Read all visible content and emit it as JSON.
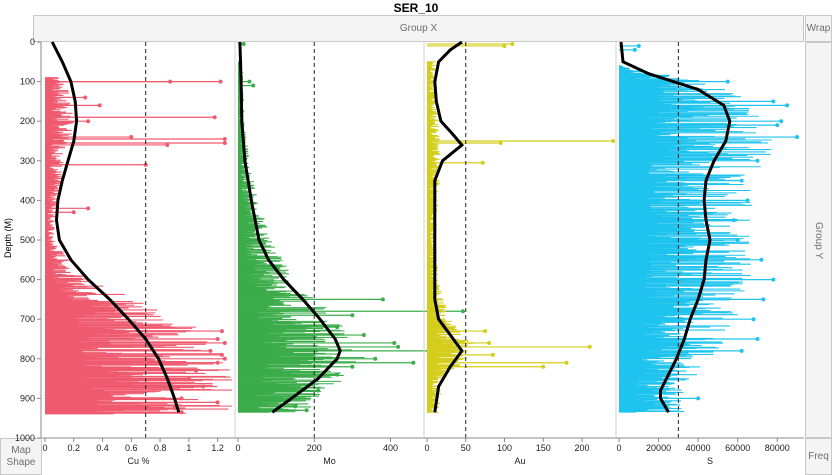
{
  "title": "SER_10",
  "zones": {
    "group_x": "Group X",
    "wrap": "Wrap",
    "group_y": "Group Y",
    "map_shape_line1": "Map",
    "map_shape_line2": "Shape",
    "freq": "Freq"
  },
  "chart_data": {
    "type": "line",
    "ylabel": "Depth (M)",
    "ylim": [
      1000,
      0
    ],
    "yticks": [
      0,
      100,
      200,
      300,
      400,
      500,
      600,
      700,
      800,
      900,
      1000
    ],
    "panels": [
      {
        "name": "Cu %",
        "color": "#ef5a6f",
        "xlim": [
          0,
          1.3
        ],
        "xticks": [
          0,
          0.2,
          0.4,
          0.6,
          0.8,
          1,
          1.2
        ],
        "xticklabels": [
          "0",
          "0.2",
          "0.4",
          "0.6",
          "0.8",
          "1",
          "1.2"
        ],
        "reference_line": 0.7,
        "spikes": [
          [
            100,
            0.87
          ],
          [
            100,
            1.22
          ],
          [
            140,
            0.28
          ],
          [
            160,
            0.38
          ],
          [
            190,
            1.18
          ],
          [
            200,
            0.3
          ],
          [
            240,
            0.6
          ],
          [
            245,
            1.25
          ],
          [
            255,
            1.25
          ],
          [
            260,
            0.85
          ],
          [
            310,
            0.7
          ],
          [
            420,
            0.3
          ],
          [
            430,
            0.2
          ],
          [
            730,
            1.23
          ],
          [
            750,
            1.2
          ],
          [
            760,
            1.25
          ],
          [
            780,
            1.15
          ],
          [
            790,
            1.23
          ],
          [
            800,
            1.25
          ],
          [
            810,
            1.2
          ],
          [
            830,
            1.05
          ],
          [
            850,
            1.0
          ],
          [
            870,
            1.1
          ],
          [
            900,
            0.95
          ],
          [
            910,
            1.2
          ],
          [
            925,
            0.9
          ],
          [
            935,
            0.95
          ]
        ],
        "baseline": [
          [
            90,
            0.1
          ],
          [
            200,
            0.14
          ],
          [
            300,
            0.09
          ],
          [
            400,
            0.07
          ],
          [
            450,
            0.05
          ],
          [
            500,
            0.04
          ],
          [
            600,
            0.2
          ],
          [
            650,
            0.45
          ],
          [
            700,
            0.7
          ],
          [
            750,
            0.75
          ],
          [
            800,
            0.85
          ],
          [
            850,
            0.9
          ],
          [
            900,
            0.95
          ],
          [
            940,
            0.9
          ]
        ],
        "trend": [
          [
            0,
            0.05
          ],
          [
            50,
            0.12
          ],
          [
            100,
            0.18
          ],
          [
            150,
            0.21
          ],
          [
            200,
            0.22
          ],
          [
            250,
            0.2
          ],
          [
            300,
            0.16
          ],
          [
            350,
            0.12
          ],
          [
            400,
            0.09
          ],
          [
            450,
            0.08
          ],
          [
            500,
            0.1
          ],
          [
            550,
            0.18
          ],
          [
            600,
            0.3
          ],
          [
            650,
            0.45
          ],
          [
            700,
            0.58
          ],
          [
            750,
            0.7
          ],
          [
            800,
            0.79
          ],
          [
            850,
            0.85
          ],
          [
            900,
            0.9
          ],
          [
            935,
            0.93
          ]
        ]
      },
      {
        "name": "Mo",
        "color": "#3cad4b",
        "xlim": [
          0,
          480
        ],
        "xticks": [
          0,
          200,
          400
        ],
        "xticklabels": [
          "0",
          "200",
          "400"
        ],
        "reference_line": 200,
        "spikes": [
          [
            5,
            15
          ],
          [
            100,
            30
          ],
          [
            110,
            40
          ],
          [
            450,
            35
          ],
          [
            475,
            40
          ],
          [
            600,
            50
          ],
          [
            650,
            380
          ],
          [
            680,
            590
          ],
          [
            690,
            300
          ],
          [
            720,
            260
          ],
          [
            740,
            330
          ],
          [
            760,
            410
          ],
          [
            770,
            420
          ],
          [
            780,
            500
          ],
          [
            800,
            360
          ],
          [
            810,
            460
          ],
          [
            820,
            300
          ],
          [
            840,
            260
          ],
          [
            880,
            210
          ],
          [
            920,
            150
          ],
          [
            930,
            180
          ]
        ],
        "baseline": [
          [
            50,
            8
          ],
          [
            200,
            12
          ],
          [
            300,
            20
          ],
          [
            400,
            35
          ],
          [
            500,
            60
          ],
          [
            600,
            100
          ],
          [
            700,
            180
          ],
          [
            800,
            230
          ],
          [
            900,
            160
          ],
          [
            935,
            120
          ]
        ],
        "trend": [
          [
            0,
            5
          ],
          [
            100,
            8
          ],
          [
            200,
            10
          ],
          [
            300,
            18
          ],
          [
            400,
            35
          ],
          [
            500,
            55
          ],
          [
            550,
            80
          ],
          [
            600,
            120
          ],
          [
            650,
            170
          ],
          [
            700,
            215
          ],
          [
            750,
            255
          ],
          [
            780,
            268
          ],
          [
            800,
            260
          ],
          [
            850,
            210
          ],
          [
            900,
            140
          ],
          [
            935,
            90
          ]
        ]
      },
      {
        "name": "Au",
        "color": "#d4cd1c",
        "xlim": [
          0,
          240
        ],
        "xticks": [
          0,
          50,
          100,
          150,
          200
        ],
        "xticklabels": [
          "0",
          "50",
          "100",
          "150",
          "200"
        ],
        "reference_line": 50,
        "spikes": [
          [
            5,
            110
          ],
          [
            10,
            100
          ],
          [
            250,
            240
          ],
          [
            255,
            95
          ],
          [
            305,
            72
          ],
          [
            730,
            75
          ],
          [
            760,
            80
          ],
          [
            770,
            210
          ],
          [
            790,
            85
          ],
          [
            810,
            180
          ],
          [
            820,
            150
          ]
        ],
        "baseline": [
          [
            50,
            8
          ],
          [
            200,
            10
          ],
          [
            300,
            12
          ],
          [
            400,
            10
          ],
          [
            500,
            8
          ],
          [
            600,
            10
          ],
          [
            700,
            20
          ],
          [
            760,
            40
          ],
          [
            800,
            35
          ],
          [
            850,
            15
          ],
          [
            935,
            10
          ]
        ],
        "trend": [
          [
            0,
            45
          ],
          [
            20,
            30
          ],
          [
            50,
            15
          ],
          [
            100,
            10
          ],
          [
            150,
            12
          ],
          [
            200,
            18
          ],
          [
            230,
            32
          ],
          [
            260,
            45
          ],
          [
            300,
            20
          ],
          [
            350,
            10
          ],
          [
            400,
            10
          ],
          [
            500,
            10
          ],
          [
            600,
            10
          ],
          [
            650,
            10
          ],
          [
            700,
            15
          ],
          [
            740,
            30
          ],
          [
            780,
            45
          ],
          [
            820,
            30
          ],
          [
            870,
            15
          ],
          [
            935,
            10
          ]
        ]
      },
      {
        "name": "S",
        "color": "#1ec3ee",
        "xlim": [
          0,
          92000
        ],
        "xticks": [
          0,
          20000,
          40000,
          60000,
          80000
        ],
        "xticklabels": [
          "0",
          "20000",
          "40000",
          "60000",
          "80000"
        ],
        "reference_line": 30000,
        "spikes": [
          [
            10,
            10000
          ],
          [
            20,
            8000
          ],
          [
            100,
            55000
          ],
          [
            150,
            78000
          ],
          [
            160,
            85000
          ],
          [
            200,
            82000
          ],
          [
            210,
            80000
          ],
          [
            240,
            90000
          ],
          [
            300,
            70000
          ],
          [
            350,
            62000
          ],
          [
            400,
            65000
          ],
          [
            450,
            58000
          ],
          [
            500,
            60000
          ],
          [
            550,
            72000
          ],
          [
            600,
            78000
          ],
          [
            650,
            73000
          ],
          [
            700,
            68000
          ],
          [
            750,
            70000
          ],
          [
            780,
            62000
          ],
          [
            900,
            40000
          ]
        ],
        "baseline": [
          [
            60,
            2000
          ],
          [
            100,
            30000
          ],
          [
            150,
            45000
          ],
          [
            250,
            55000
          ],
          [
            300,
            50000
          ],
          [
            400,
            45000
          ],
          [
            500,
            45000
          ],
          [
            600,
            45000
          ],
          [
            700,
            40000
          ],
          [
            800,
            32000
          ],
          [
            850,
            25000
          ],
          [
            900,
            22000
          ],
          [
            935,
            25000
          ]
        ],
        "trend": [
          [
            0,
            1000
          ],
          [
            50,
            2000
          ],
          [
            80,
            15000
          ],
          [
            120,
            40000
          ],
          [
            160,
            53000
          ],
          [
            200,
            56000
          ],
          [
            250,
            54000
          ],
          [
            300,
            48000
          ],
          [
            350,
            44000
          ],
          [
            400,
            43000
          ],
          [
            450,
            44000
          ],
          [
            500,
            46000
          ],
          [
            550,
            44000
          ],
          [
            600,
            43000
          ],
          [
            650,
            40000
          ],
          [
            700,
            36000
          ],
          [
            750,
            33000
          ],
          [
            800,
            29000
          ],
          [
            850,
            24000
          ],
          [
            880,
            21000
          ],
          [
            900,
            21000
          ],
          [
            935,
            25000
          ]
        ]
      }
    ]
  }
}
